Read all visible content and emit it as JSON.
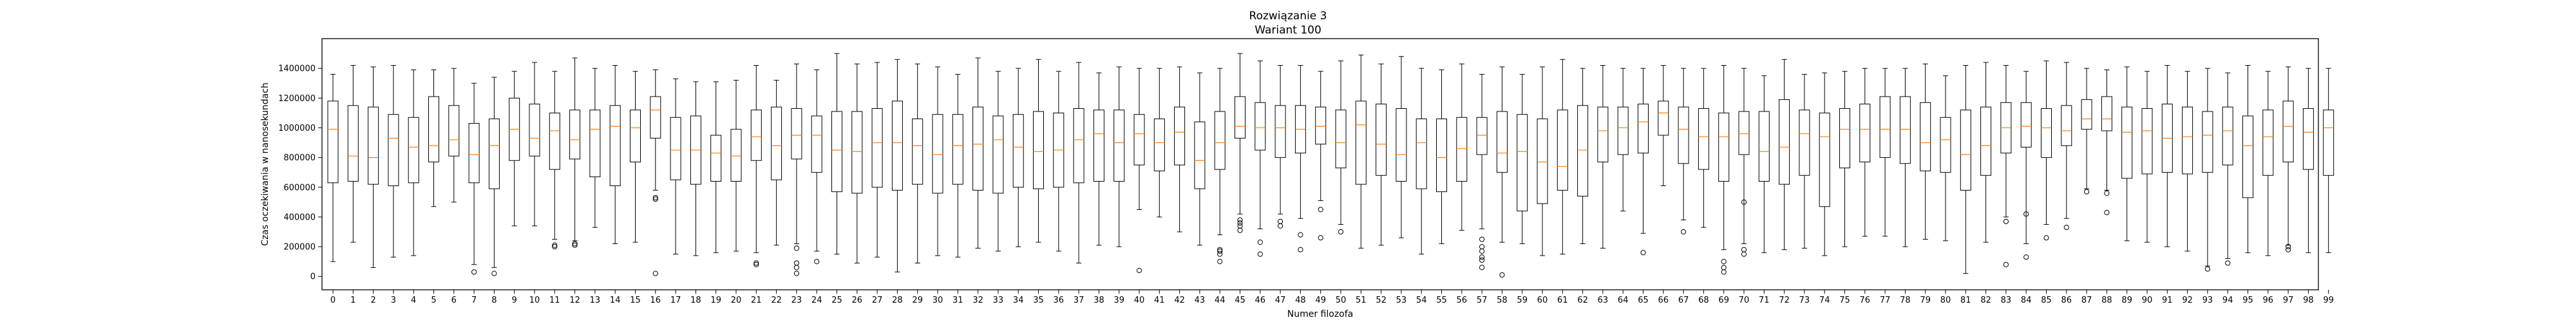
{
  "chart_data": {
    "type": "boxplot",
    "title": "Rozwiązanie 3",
    "subtitle": "Wariant 100",
    "xlabel": "Numer filozofa",
    "ylabel": "Czas oczekiwania w nanosekundach",
    "ylim": [
      -90000,
      1600000
    ],
    "yticks": [
      0,
      200000,
      400000,
      600000,
      800000,
      1000000,
      1200000,
      1400000
    ],
    "ytick_labels": [
      "0",
      "200000",
      "400000",
      "600000",
      "800000",
      "1000000",
      "1200000",
      "1400000"
    ],
    "grid": false,
    "colors": {
      "box": "#000000",
      "median": "#ff7f0e",
      "outlier": "#000000"
    },
    "categories": [
      "0",
      "1",
      "2",
      "3",
      "4",
      "5",
      "6",
      "7",
      "8",
      "9",
      "10",
      "11",
      "12",
      "13",
      "14",
      "15",
      "16",
      "17",
      "18",
      "19",
      "20",
      "21",
      "22",
      "23",
      "24",
      "25",
      "26",
      "27",
      "28",
      "29",
      "30",
      "31",
      "32",
      "33",
      "34",
      "35",
      "36",
      "37",
      "38",
      "39",
      "40",
      "41",
      "42",
      "43",
      "44",
      "45",
      "46",
      "47",
      "48",
      "49",
      "50",
      "51",
      "52",
      "53",
      "54",
      "55",
      "56",
      "57",
      "58",
      "59",
      "60",
      "61",
      "62",
      "63",
      "64",
      "65",
      "66",
      "67",
      "68",
      "69",
      "70",
      "71",
      "72",
      "73",
      "74",
      "75",
      "76",
      "77",
      "78",
      "79",
      "80",
      "81",
      "82",
      "83",
      "84",
      "85",
      "86",
      "87",
      "88",
      "89",
      "90",
      "91",
      "92",
      "93",
      "94",
      "95",
      "96",
      "97",
      "98",
      "99"
    ],
    "series": [
      {
        "box": [
          100000,
          630000,
          990000,
          1180000,
          1360000
        ]
      },
      {
        "box": [
          230000,
          640000,
          810000,
          1150000,
          1420000
        ]
      },
      {
        "box": [
          60000,
          620000,
          800000,
          1140000,
          1410000
        ]
      },
      {
        "box": [
          130000,
          610000,
          930000,
          1090000,
          1420000
        ]
      },
      {
        "box": [
          140000,
          630000,
          870000,
          1070000,
          1390000
        ]
      },
      {
        "box": [
          470000,
          770000,
          880000,
          1210000,
          1390000
        ]
      },
      {
        "box": [
          500000,
          810000,
          920000,
          1150000,
          1400000
        ]
      },
      {
        "box": [
          80000,
          630000,
          820000,
          1030000,
          1300000
        ],
        "outliers": [
          30000
        ]
      },
      {
        "box": [
          60000,
          590000,
          880000,
          1060000,
          1340000
        ],
        "outliers": [
          20000
        ]
      },
      {
        "box": [
          340000,
          780000,
          990000,
          1200000,
          1380000
        ]
      },
      {
        "box": [
          340000,
          810000,
          930000,
          1160000,
          1440000
        ]
      },
      {
        "box": [
          250000,
          720000,
          980000,
          1100000,
          1380000
        ],
        "outliers": [
          200000,
          210000
        ]
      },
      {
        "box": [
          240000,
          790000,
          920000,
          1120000,
          1470000
        ],
        "outliers": [
          210000,
          220000
        ]
      },
      {
        "box": [
          330000,
          670000,
          990000,
          1120000,
          1400000
        ]
      },
      {
        "box": [
          220000,
          610000,
          1010000,
          1150000,
          1420000
        ]
      },
      {
        "box": [
          230000,
          770000,
          1000000,
          1120000,
          1380000
        ]
      },
      {
        "box": [
          580000,
          930000,
          1120000,
          1210000,
          1390000
        ],
        "outliers": [
          520000,
          530000,
          20000
        ]
      },
      {
        "box": [
          150000,
          650000,
          850000,
          1070000,
          1330000
        ]
      },
      {
        "box": [
          140000,
          620000,
          850000,
          1080000,
          1310000
        ]
      },
      {
        "box": [
          160000,
          640000,
          830000,
          950000,
          1310000
        ]
      },
      {
        "box": [
          170000,
          640000,
          810000,
          990000,
          1320000
        ]
      },
      {
        "box": [
          160000,
          780000,
          940000,
          1120000,
          1420000
        ],
        "outliers": [
          90000,
          80000
        ]
      },
      {
        "box": [
          210000,
          650000,
          880000,
          1140000,
          1320000
        ]
      },
      {
        "box": [
          220000,
          790000,
          950000,
          1130000,
          1430000
        ],
        "outliers": [
          190000,
          90000,
          60000,
          20000
        ]
      },
      {
        "box": [
          170000,
          700000,
          950000,
          1080000,
          1390000
        ],
        "outliers": [
          100000
        ]
      },
      {
        "box": [
          150000,
          570000,
          850000,
          1110000,
          1500000
        ]
      },
      {
        "box": [
          90000,
          560000,
          840000,
          1110000,
          1430000
        ]
      },
      {
        "box": [
          130000,
          600000,
          900000,
          1130000,
          1440000
        ]
      },
      {
        "box": [
          30000,
          580000,
          900000,
          1180000,
          1460000
        ]
      },
      {
        "box": [
          90000,
          620000,
          880000,
          1060000,
          1430000
        ]
      },
      {
        "box": [
          140000,
          560000,
          820000,
          1090000,
          1410000
        ]
      },
      {
        "box": [
          130000,
          620000,
          880000,
          1090000,
          1360000
        ]
      },
      {
        "box": [
          190000,
          580000,
          890000,
          1140000,
          1470000
        ]
      },
      {
        "box": [
          170000,
          560000,
          920000,
          1080000,
          1380000
        ]
      },
      {
        "box": [
          200000,
          600000,
          870000,
          1090000,
          1400000
        ]
      },
      {
        "box": [
          230000,
          590000,
          840000,
          1110000,
          1460000
        ]
      },
      {
        "box": [
          170000,
          600000,
          850000,
          1100000,
          1380000
        ]
      },
      {
        "box": [
          90000,
          630000,
          920000,
          1130000,
          1440000
        ]
      },
      {
        "box": [
          210000,
          640000,
          960000,
          1120000,
          1370000
        ]
      },
      {
        "box": [
          200000,
          640000,
          900000,
          1120000,
          1410000
        ]
      },
      {
        "box": [
          450000,
          750000,
          960000,
          1090000,
          1400000
        ],
        "outliers": [
          40000
        ]
      },
      {
        "box": [
          400000,
          710000,
          900000,
          1060000,
          1400000
        ]
      },
      {
        "box": [
          300000,
          750000,
          970000,
          1140000,
          1410000
        ]
      },
      {
        "box": [
          210000,
          590000,
          780000,
          1040000,
          1370000
        ]
      },
      {
        "box": [
          280000,
          720000,
          900000,
          1110000,
          1400000
        ],
        "outliers": [
          180000,
          170000,
          150000,
          100000
        ]
      },
      {
        "box": [
          420000,
          930000,
          1010000,
          1210000,
          1500000
        ],
        "outliers": [
          380000,
          360000,
          340000,
          310000
        ]
      },
      {
        "box": [
          320000,
          850000,
          1000000,
          1170000,
          1450000
        ],
        "outliers": [
          230000,
          150000
        ]
      },
      {
        "box": [
          420000,
          800000,
          1000000,
          1150000,
          1420000
        ],
        "outliers": [
          370000,
          340000
        ]
      },
      {
        "box": [
          390000,
          830000,
          990000,
          1150000,
          1420000
        ],
        "outliers": [
          280000,
          180000
        ]
      },
      {
        "box": [
          510000,
          890000,
          1010000,
          1140000,
          1380000
        ],
        "outliers": [
          450000,
          260000
        ]
      },
      {
        "box": [
          350000,
          730000,
          900000,
          1120000,
          1450000
        ],
        "outliers": [
          300000
        ]
      },
      {
        "box": [
          190000,
          620000,
          1020000,
          1180000,
          1490000
        ]
      },
      {
        "box": [
          210000,
          680000,
          890000,
          1160000,
          1430000
        ]
      },
      {
        "box": [
          260000,
          640000,
          820000,
          1130000,
          1480000
        ]
      },
      {
        "box": [
          150000,
          590000,
          900000,
          1060000,
          1400000
        ]
      },
      {
        "box": [
          220000,
          570000,
          800000,
          1060000,
          1390000
        ]
      },
      {
        "box": [
          310000,
          640000,
          860000,
          1070000,
          1430000
        ]
      },
      {
        "box": [
          320000,
          820000,
          950000,
          1070000,
          1360000
        ],
        "outliers": [
          250000,
          200000,
          170000,
          130000,
          110000,
          60000
        ]
      },
      {
        "box": [
          230000,
          700000,
          830000,
          1110000,
          1410000
        ],
        "outliers": [
          10000
        ]
      },
      {
        "box": [
          220000,
          440000,
          840000,
          1090000,
          1360000
        ]
      },
      {
        "box": [
          140000,
          490000,
          770000,
          1060000,
          1410000
        ]
      },
      {
        "box": [
          150000,
          580000,
          740000,
          1120000,
          1460000
        ]
      },
      {
        "box": [
          220000,
          540000,
          850000,
          1150000,
          1400000
        ]
      },
      {
        "box": [
          190000,
          770000,
          980000,
          1140000,
          1420000
        ]
      },
      {
        "box": [
          440000,
          820000,
          1000000,
          1140000,
          1400000
        ]
      },
      {
        "box": [
          290000,
          830000,
          1040000,
          1160000,
          1400000
        ],
        "outliers": [
          160000
        ]
      },
      {
        "box": [
          610000,
          950000,
          1100000,
          1180000,
          1420000
        ]
      },
      {
        "box": [
          380000,
          760000,
          990000,
          1140000,
          1400000
        ],
        "outliers": [
          300000
        ]
      },
      {
        "box": [
          330000,
          720000,
          940000,
          1130000,
          1400000
        ]
      },
      {
        "box": [
          180000,
          640000,
          940000,
          1100000,
          1420000
        ],
        "outliers": [
          100000,
          60000,
          30000
        ]
      },
      {
        "box": [
          220000,
          820000,
          960000,
          1110000,
          1400000
        ],
        "outliers": [
          500000,
          180000,
          150000
        ]
      },
      {
        "box": [
          160000,
          640000,
          840000,
          1110000,
          1350000
        ]
      },
      {
        "box": [
          180000,
          620000,
          870000,
          1190000,
          1460000
        ]
      },
      {
        "box": [
          190000,
          680000,
          960000,
          1120000,
          1360000
        ]
      },
      {
        "box": [
          140000,
          470000,
          940000,
          1100000,
          1370000
        ]
      },
      {
        "box": [
          200000,
          730000,
          990000,
          1130000,
          1380000
        ]
      },
      {
        "box": [
          270000,
          770000,
          990000,
          1160000,
          1400000
        ]
      },
      {
        "box": [
          270000,
          800000,
          990000,
          1210000,
          1400000
        ]
      },
      {
        "box": [
          200000,
          760000,
          990000,
          1210000,
          1400000
        ]
      },
      {
        "box": [
          250000,
          710000,
          900000,
          1170000,
          1430000
        ]
      },
      {
        "box": [
          240000,
          700000,
          920000,
          1070000,
          1350000
        ]
      },
      {
        "box": [
          20000,
          580000,
          820000,
          1120000,
          1420000
        ]
      },
      {
        "box": [
          230000,
          680000,
          880000,
          1140000,
          1440000
        ]
      },
      {
        "box": [
          400000,
          830000,
          1000000,
          1170000,
          1420000
        ],
        "outliers": [
          370000,
          80000
        ]
      },
      {
        "box": [
          220000,
          870000,
          1010000,
          1170000,
          1380000
        ],
        "outliers": [
          420000,
          130000
        ]
      },
      {
        "box": [
          350000,
          800000,
          1000000,
          1130000,
          1450000
        ],
        "outliers": [
          260000
        ]
      },
      {
        "box": [
          390000,
          880000,
          980000,
          1150000,
          1440000
        ],
        "outliers": [
          330000
        ]
      },
      {
        "box": [
          590000,
          990000,
          1060000,
          1190000,
          1400000
        ],
        "outliers": [
          570000
        ]
      },
      {
        "box": [
          580000,
          980000,
          1060000,
          1210000,
          1390000
        ],
        "outliers": [
          560000,
          430000
        ]
      },
      {
        "box": [
          240000,
          660000,
          970000,
          1140000,
          1410000
        ]
      },
      {
        "box": [
          230000,
          690000,
          980000,
          1130000,
          1380000
        ]
      },
      {
        "box": [
          200000,
          700000,
          930000,
          1160000,
          1420000
        ]
      },
      {
        "box": [
          170000,
          690000,
          940000,
          1140000,
          1380000
        ]
      },
      {
        "box": [
          70000,
          700000,
          950000,
          1110000,
          1400000
        ],
        "outliers": [
          50000
        ]
      },
      {
        "box": [
          120000,
          750000,
          980000,
          1140000,
          1370000
        ],
        "outliers": [
          90000
        ]
      },
      {
        "box": [
          160000,
          530000,
          880000,
          1080000,
          1420000
        ]
      },
      {
        "box": [
          140000,
          680000,
          940000,
          1120000,
          1380000
        ]
      },
      {
        "box": [
          210000,
          770000,
          1010000,
          1180000,
          1410000
        ],
        "outliers": [
          200000,
          180000
        ]
      },
      {
        "box": [
          160000,
          720000,
          970000,
          1130000,
          1400000
        ]
      },
      {
        "box": [
          160000,
          680000,
          1000000,
          1120000,
          1400000
        ]
      }
    ]
  }
}
